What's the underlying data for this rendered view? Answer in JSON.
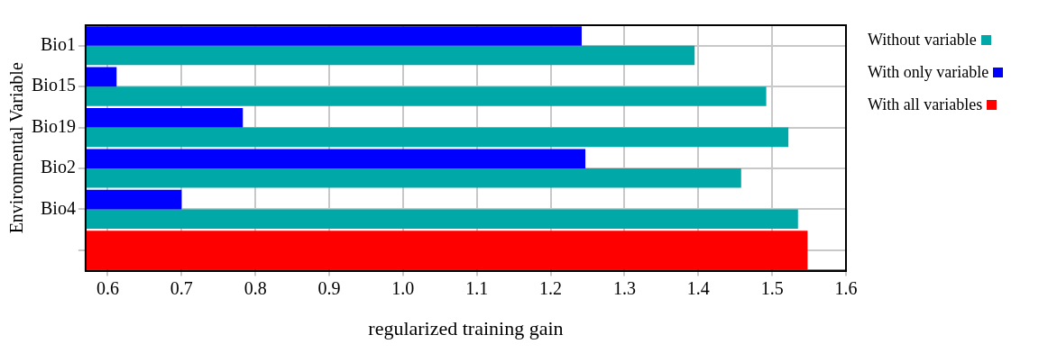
{
  "chart_data": {
    "type": "bar",
    "orientation": "horizontal",
    "xlabel": "regularized training gain",
    "ylabel": "Environmental Variable",
    "categories": [
      "Bio1",
      "Bio15",
      "Bio19",
      "Bio2",
      "Bio4",
      null
    ],
    "series": [
      {
        "name": "Without variable",
        "color": "#00a8a8",
        "values": [
          1.395,
          1.492,
          1.522,
          1.458,
          1.535,
          null
        ]
      },
      {
        "name": "With only variable",
        "color": "#0000ff",
        "values": [
          1.242,
          0.612,
          0.783,
          1.247,
          0.7,
          null
        ]
      },
      {
        "name": "With all variables",
        "color": "#ff0000",
        "values": [
          null,
          null,
          null,
          null,
          null,
          1.548
        ]
      }
    ],
    "xlim": [
      0.57,
      1.6
    ],
    "xticks": [
      {
        "value": 0.6,
        "label": "0.6"
      },
      {
        "value": 0.7,
        "label": "0.7"
      },
      {
        "value": 0.8,
        "label": "0.8"
      },
      {
        "value": 0.9,
        "label": "0.9"
      },
      {
        "value": 1.0,
        "label": "1.0"
      },
      {
        "value": 1.1,
        "label": "1.1"
      },
      {
        "value": 1.2,
        "label": "1.2"
      },
      {
        "value": 1.3,
        "label": "1.3"
      },
      {
        "value": 1.4,
        "label": "1.4"
      },
      {
        "value": 1.5,
        "label": "1.5"
      },
      {
        "value": 1.6,
        "label": "1.6"
      }
    ],
    "grid": true,
    "legend": "top right"
  }
}
